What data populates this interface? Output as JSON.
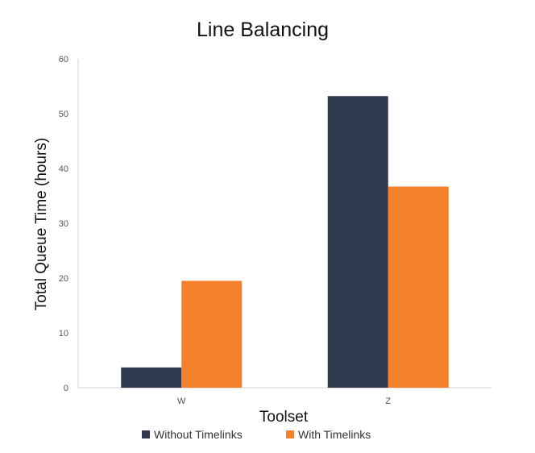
{
  "chart_data": {
    "type": "bar",
    "title": "Line Balancing",
    "xlabel": "Toolset",
    "ylabel": "Total Queue Time (hours)",
    "categories": [
      "W",
      "Z"
    ],
    "series": [
      {
        "name": "Without Timelinks",
        "values": [
          3.7,
          53.2
        ],
        "color": "#2f3a4e"
      },
      {
        "name": "With Timelinks",
        "values": [
          19.5,
          36.7
        ],
        "color": "#f5812d"
      }
    ],
    "ylim": [
      0,
      60
    ],
    "yticks": [
      0,
      10,
      20,
      30,
      40,
      50,
      60
    ],
    "grid": false,
    "legend_position": "bottom"
  }
}
